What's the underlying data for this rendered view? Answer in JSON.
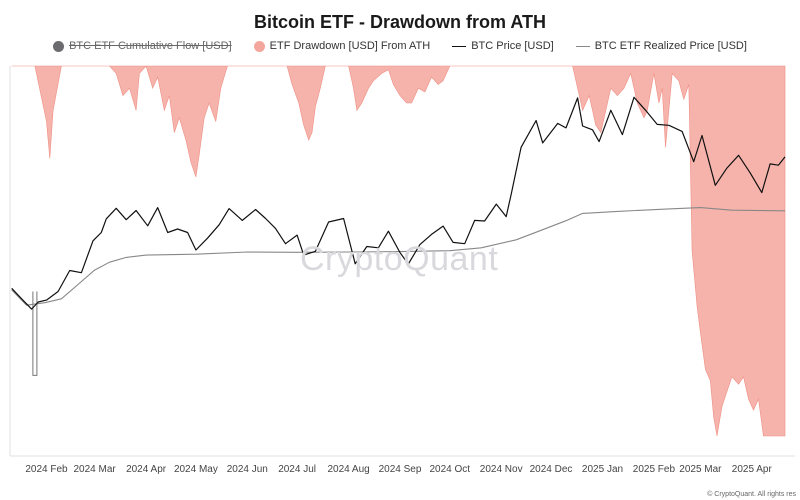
{
  "chart_data": {
    "type": "line",
    "title": "Bitcoin ETF - Drawdown from ATH",
    "xlabel": "",
    "ylabel": "",
    "x_tick_labels": [
      "2024 Feb",
      "2024 Mar",
      "2024 Apr",
      "2024 May",
      "2024 Jun",
      "2024 Jul",
      "2024 Aug",
      "2024 Sep",
      "2024 Oct",
      "2024 Nov",
      "2024 Dec",
      "2025 Jan",
      "2025 Feb",
      "2025 Mar",
      "2025 Apr"
    ],
    "legend": [
      {
        "name": "BTC ETF Cumulative Flow [USD]",
        "color": "#555555",
        "marker": "dot",
        "disabled": true
      },
      {
        "name": "ETF Drawdown [USD] From ATH",
        "color": "#f4a69c",
        "marker": "dot",
        "disabled": false
      },
      {
        "name": "BTC Price [USD]",
        "color": "#111111",
        "marker": "line",
        "disabled": false
      },
      {
        "name": "BTC ETF Realized Price [USD]",
        "color": "#888888",
        "marker": "line",
        "disabled": false
      }
    ],
    "series": [
      {
        "name": "BTC Price [USD]",
        "color": "#111111",
        "points": [
          [
            "2024-01-11",
            46300
          ],
          [
            "2024-01-17",
            43000
          ],
          [
            "2024-01-23",
            39800
          ],
          [
            "2024-01-27",
            42000
          ],
          [
            "2024-02-01",
            42600
          ],
          [
            "2024-02-08",
            45300
          ],
          [
            "2024-02-15",
            51900
          ],
          [
            "2024-02-22",
            51200
          ],
          [
            "2024-02-29",
            61200
          ],
          [
            "2024-03-05",
            63800
          ],
          [
            "2024-03-08",
            68100
          ],
          [
            "2024-03-14",
            71400
          ],
          [
            "2024-03-20",
            67800
          ],
          [
            "2024-03-26",
            70700
          ],
          [
            "2024-04-02",
            65900
          ],
          [
            "2024-04-08",
            71600
          ],
          [
            "2024-04-14",
            63800
          ],
          [
            "2024-04-20",
            64900
          ],
          [
            "2024-04-26",
            63800
          ],
          [
            "2024-05-01",
            58300
          ],
          [
            "2024-05-08",
            62000
          ],
          [
            "2024-05-15",
            66200
          ],
          [
            "2024-05-21",
            71300
          ],
          [
            "2024-05-29",
            67600
          ],
          [
            "2024-06-06",
            71000
          ],
          [
            "2024-06-12",
            68200
          ],
          [
            "2024-06-18",
            65100
          ],
          [
            "2024-06-24",
            60300
          ],
          [
            "2024-07-01",
            63000
          ],
          [
            "2024-07-05",
            56700
          ],
          [
            "2024-07-12",
            57900
          ],
          [
            "2024-07-20",
            67100
          ],
          [
            "2024-07-29",
            68200
          ],
          [
            "2024-08-05",
            54000
          ],
          [
            "2024-08-12",
            59400
          ],
          [
            "2024-08-19",
            59000
          ],
          [
            "2024-08-25",
            64200
          ],
          [
            "2024-09-01",
            57500
          ],
          [
            "2024-09-06",
            53900
          ],
          [
            "2024-09-13",
            60000
          ],
          [
            "2024-09-20",
            63200
          ],
          [
            "2024-09-27",
            65800
          ],
          [
            "2024-10-03",
            60700
          ],
          [
            "2024-10-10",
            60300
          ],
          [
            "2024-10-16",
            67600
          ],
          [
            "2024-10-22",
            67400
          ],
          [
            "2024-10-29",
            72700
          ],
          [
            "2024-11-04",
            68800
          ],
          [
            "2024-11-07",
            75800
          ],
          [
            "2024-11-13",
            90500
          ],
          [
            "2024-11-22",
            98900
          ],
          [
            "2024-11-26",
            91900
          ],
          [
            "2024-12-05",
            98000
          ],
          [
            "2024-12-10",
            96600
          ],
          [
            "2024-12-17",
            106000
          ],
          [
            "2024-12-20",
            97200
          ],
          [
            "2024-12-26",
            96000
          ],
          [
            "2024-12-30",
            92300
          ],
          [
            "2025-01-06",
            102100
          ],
          [
            "2025-01-13",
            94500
          ],
          [
            "2025-01-20",
            106200
          ],
          [
            "2025-01-27",
            102100
          ],
          [
            "2025-02-03",
            97700
          ],
          [
            "2025-02-10",
            97400
          ],
          [
            "2025-02-18",
            95500
          ],
          [
            "2025-02-25",
            86000
          ],
          [
            "2025-03-02",
            94200
          ],
          [
            "2025-03-10",
            78600
          ],
          [
            "2025-03-17",
            84000
          ],
          [
            "2025-03-24",
            88000
          ],
          [
            "2025-03-31",
            82500
          ],
          [
            "2025-04-07",
            76300
          ],
          [
            "2025-04-12",
            85300
          ],
          [
            "2025-04-17",
            84900
          ],
          [
            "2025-04-21",
            87500
          ]
        ]
      },
      {
        "name": "BTC ETF Realized Price [USD]",
        "color": "#888888",
        "points": [
          [
            "2024-01-11",
            45800
          ],
          [
            "2024-01-20",
            41000
          ],
          [
            "2024-01-31",
            41800
          ],
          [
            "2024-02-10",
            43000
          ],
          [
            "2024-02-20",
            47500
          ],
          [
            "2024-03-01",
            52000
          ],
          [
            "2024-03-10",
            54500
          ],
          [
            "2024-03-20",
            56000
          ],
          [
            "2024-04-01",
            56700
          ],
          [
            "2024-05-01",
            57000
          ],
          [
            "2024-06-01",
            57700
          ],
          [
            "2024-07-01",
            57600
          ],
          [
            "2024-08-01",
            57700
          ],
          [
            "2024-09-01",
            57800
          ],
          [
            "2024-10-01",
            58100
          ],
          [
            "2024-10-20",
            59000
          ],
          [
            "2024-11-10",
            61500
          ],
          [
            "2024-11-25",
            64500
          ],
          [
            "2024-12-10",
            67500
          ],
          [
            "2024-12-20",
            69800
          ],
          [
            "2025-01-10",
            70400
          ],
          [
            "2025-02-10",
            71200
          ],
          [
            "2025-03-01",
            71600
          ],
          [
            "2025-03-20",
            70800
          ],
          [
            "2025-04-21",
            70600
          ]
        ]
      },
      {
        "name": "ETF Drawdown [USD] From ATH",
        "color": "#f4a69c",
        "note_units": "fraction of chart depth, 0 = top axis, 1 = bottom axis",
        "points": [
          [
            "2024-01-11",
            0
          ],
          [
            "2024-01-25",
            0
          ],
          [
            "2024-02-01",
            0.15
          ],
          [
            "2024-02-03",
            0.25
          ],
          [
            "2024-02-05",
            0.12
          ],
          [
            "2024-02-10",
            0
          ],
          [
            "2024-03-10",
            0
          ],
          [
            "2024-03-14",
            0.02
          ],
          [
            "2024-03-18",
            0.08
          ],
          [
            "2024-03-22",
            0.06
          ],
          [
            "2024-03-26",
            0.12
          ],
          [
            "2024-03-28",
            0.02
          ],
          [
            "2024-04-01",
            0
          ],
          [
            "2024-04-05",
            0.06
          ],
          [
            "2024-04-08",
            0.03
          ],
          [
            "2024-04-12",
            0.12
          ],
          [
            "2024-04-15",
            0.08
          ],
          [
            "2024-04-18",
            0.18
          ],
          [
            "2024-04-21",
            0.14
          ],
          [
            "2024-04-25",
            0.2
          ],
          [
            "2024-04-28",
            0.26
          ],
          [
            "2024-05-01",
            0.3
          ],
          [
            "2024-05-03",
            0.24
          ],
          [
            "2024-05-06",
            0.14
          ],
          [
            "2024-05-09",
            0.1
          ],
          [
            "2024-05-13",
            0.15
          ],
          [
            "2024-05-16",
            0.06
          ],
          [
            "2024-05-20",
            0
          ],
          [
            "2024-06-25",
            0
          ],
          [
            "2024-06-28",
            0.05
          ],
          [
            "2024-07-02",
            0.1
          ],
          [
            "2024-07-05",
            0.16
          ],
          [
            "2024-07-08",
            0.2
          ],
          [
            "2024-07-10",
            0.18
          ],
          [
            "2024-07-12",
            0.11
          ],
          [
            "2024-07-15",
            0.06
          ],
          [
            "2024-07-18",
            0
          ],
          [
            "2024-08-01",
            0
          ],
          [
            "2024-08-04",
            0.06
          ],
          [
            "2024-08-06",
            0.12
          ],
          [
            "2024-08-09",
            0.1
          ],
          [
            "2024-08-13",
            0.06
          ],
          [
            "2024-08-16",
            0.04
          ],
          [
            "2024-08-21",
            0.02
          ],
          [
            "2024-08-25",
            0.01
          ],
          [
            "2024-08-28",
            0.05
          ],
          [
            "2024-09-01",
            0.08
          ],
          [
            "2024-09-05",
            0.1
          ],
          [
            "2024-09-08",
            0.1
          ],
          [
            "2024-09-12",
            0.06
          ],
          [
            "2024-09-16",
            0.07
          ],
          [
            "2024-09-20",
            0.03
          ],
          [
            "2024-09-24",
            0.05
          ],
          [
            "2024-09-27",
            0.04
          ],
          [
            "2024-09-30",
            0.01
          ],
          [
            "2024-10-01",
            0
          ],
          [
            "2024-12-14",
            0
          ],
          [
            "2024-12-17",
            0.06
          ],
          [
            "2024-12-20",
            0.12
          ],
          [
            "2024-12-24",
            0.08
          ],
          [
            "2024-12-28",
            0.16
          ],
          [
            "2024-12-31",
            0.18
          ],
          [
            "2025-01-03",
            0.12
          ],
          [
            "2025-01-06",
            0.06
          ],
          [
            "2025-01-10",
            0.08
          ],
          [
            "2025-01-14",
            0.06
          ],
          [
            "2025-01-18",
            0.02
          ],
          [
            "2025-01-22",
            0.1
          ],
          [
            "2025-01-26",
            0.14
          ],
          [
            "2025-01-28",
            0.12
          ],
          [
            "2025-02-01",
            0.02
          ],
          [
            "2025-02-04",
            0.1
          ],
          [
            "2025-02-06",
            0.06
          ],
          [
            "2025-02-08",
            0.22
          ],
          [
            "2025-02-12",
            0.02
          ],
          [
            "2025-02-16",
            0.04
          ],
          [
            "2025-02-19",
            0.09
          ],
          [
            "2025-02-22",
            0.05
          ],
          [
            "2025-02-24",
            0.5
          ],
          [
            "2025-02-27",
            0.65
          ],
          [
            "2025-03-01",
            0.72
          ],
          [
            "2025-03-04",
            0.82
          ],
          [
            "2025-03-07",
            0.85
          ],
          [
            "2025-03-09",
            0.95
          ],
          [
            "2025-03-11",
            1.0
          ],
          [
            "2025-03-14",
            0.92
          ],
          [
            "2025-03-17",
            0.88
          ],
          [
            "2025-03-20",
            0.84
          ],
          [
            "2025-03-24",
            0.86
          ],
          [
            "2025-03-27",
            0.84
          ],
          [
            "2025-03-30",
            0.9
          ],
          [
            "2025-04-02",
            0.93
          ],
          [
            "2025-04-05",
            0.9
          ],
          [
            "2025-04-08",
            1.0
          ],
          [
            "2025-04-12",
            1.0
          ],
          [
            "2025-04-16",
            1.0
          ],
          [
            "2025-04-21",
            1.0
          ]
        ]
      },
      {
        "name": "BTC ETF Cumulative Flow [USD]",
        "color": "#777777",
        "disabled": true,
        "spike": [
          "2024-01-25",
          45300,
          19000
        ]
      }
    ]
  },
  "watermark": "CryptoQuant",
  "copyright": "© CryptoQuant. All rights res"
}
